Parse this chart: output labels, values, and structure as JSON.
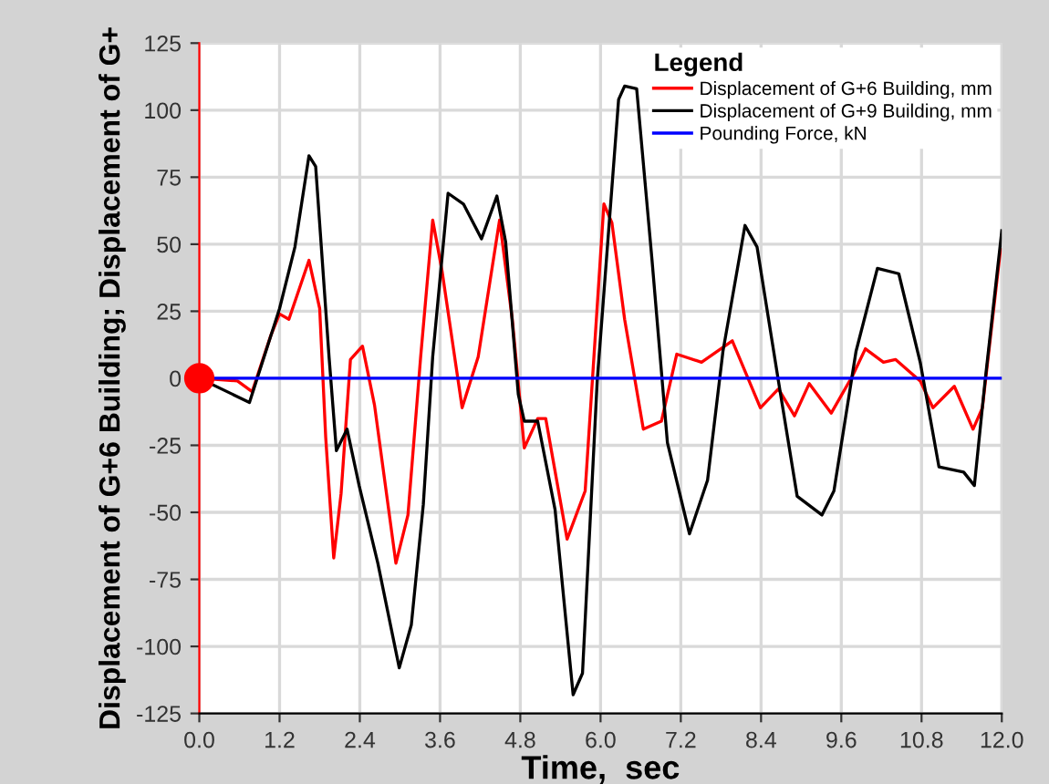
{
  "chart_data": {
    "type": "line",
    "xlabel": "Time,  sec",
    "ylabel": "Displacement of G+6 Building; Displacement of G+",
    "legend_title": "Legend",
    "legend": "top",
    "xlim": [
      0,
      12
    ],
    "ylim": [
      -125,
      125
    ],
    "xticks": [
      {
        "value": 0,
        "label": "0.0"
      },
      1.2,
      2.4,
      3.6,
      4.8,
      {
        "value": 6,
        "label": "6.0"
      },
      7.2,
      8.4,
      9.6,
      10.8,
      {
        "value": 12,
        "label": "12.0"
      }
    ],
    "yticks": [
      -125,
      -100,
      -75,
      -50,
      -25,
      0,
      25,
      50,
      75,
      100,
      125
    ],
    "grid": true,
    "series": [
      {
        "name": "Displacement of G+6 Building, mm",
        "color": "#ff0000",
        "x": [
          0,
          0.57,
          0.79,
          1.07,
          1.2,
          1.34,
          1.64,
          1.8,
          1.89,
          2.01,
          2.12,
          2.26,
          2.44,
          2.62,
          2.94,
          3.12,
          3.31,
          3.49,
          3.63,
          3.93,
          4.17,
          4.49,
          4.68,
          4.86,
          5.06,
          5.18,
          5.5,
          5.77,
          6.05,
          6.17,
          6.36,
          6.64,
          6.91,
          7.14,
          7.51,
          7.97,
          8.39,
          8.66,
          8.9,
          9.12,
          9.45,
          9.77,
          9.96,
          10.23,
          10.41,
          10.78,
          10.97,
          11.29,
          11.57,
          11.71,
          11.98
        ],
        "values": [
          0,
          -1,
          -5,
          16,
          24,
          22,
          44,
          26,
          -22,
          -67,
          -43,
          7,
          12,
          -10,
          -69,
          -51,
          8,
          59,
          40,
          -11,
          8,
          59,
          22,
          -26,
          -15,
          -15,
          -60,
          -42,
          65,
          58,
          22,
          -19,
          -16,
          9,
          6,
          14,
          -11,
          -4,
          -14,
          -2,
          -13,
          1,
          11,
          6,
          7,
          -1,
          -11,
          -3,
          -19,
          -11,
          48
        ]
      },
      {
        "name": "Displacement of G+9 Building, mm",
        "color": "#000000",
        "x": [
          0,
          0.75,
          1.2,
          1.43,
          1.64,
          1.74,
          1.94,
          2.05,
          2.21,
          2.39,
          2.67,
          2.99,
          3.17,
          3.35,
          3.49,
          3.72,
          3.95,
          4.22,
          4.45,
          4.58,
          4.77,
          4.86,
          5.06,
          5.32,
          5.59,
          5.73,
          5.95,
          6.27,
          6.36,
          6.54,
          6.77,
          7.0,
          7.33,
          7.6,
          7.83,
          8.16,
          8.34,
          8.66,
          8.94,
          9.31,
          9.49,
          9.82,
          10.14,
          10.46,
          10.78,
          11.06,
          11.43,
          11.59,
          11.75,
          12.0
        ],
        "values": [
          0,
          -9,
          26,
          49,
          83,
          79,
          8,
          -27,
          -19,
          -40,
          -69,
          -108,
          -92,
          -47,
          8,
          69,
          65,
          52,
          68,
          51,
          -6,
          -16,
          -16,
          -49,
          -118,
          -110,
          -1,
          104,
          109,
          108,
          44,
          -24,
          -58,
          -38,
          10,
          57,
          49,
          -1,
          -44,
          -51,
          -42,
          10,
          41,
          39,
          6,
          -33,
          -35,
          -40,
          -1,
          55
        ]
      },
      {
        "name": "Pounding Force, kN",
        "color": "#0000ff",
        "x": [
          0,
          12
        ],
        "values": [
          0,
          0
        ]
      },
      {
        "type": "scatter",
        "color": "#ff0000",
        "marker": "circle",
        "x": [
          0
        ],
        "values": [
          0
        ]
      }
    ]
  }
}
